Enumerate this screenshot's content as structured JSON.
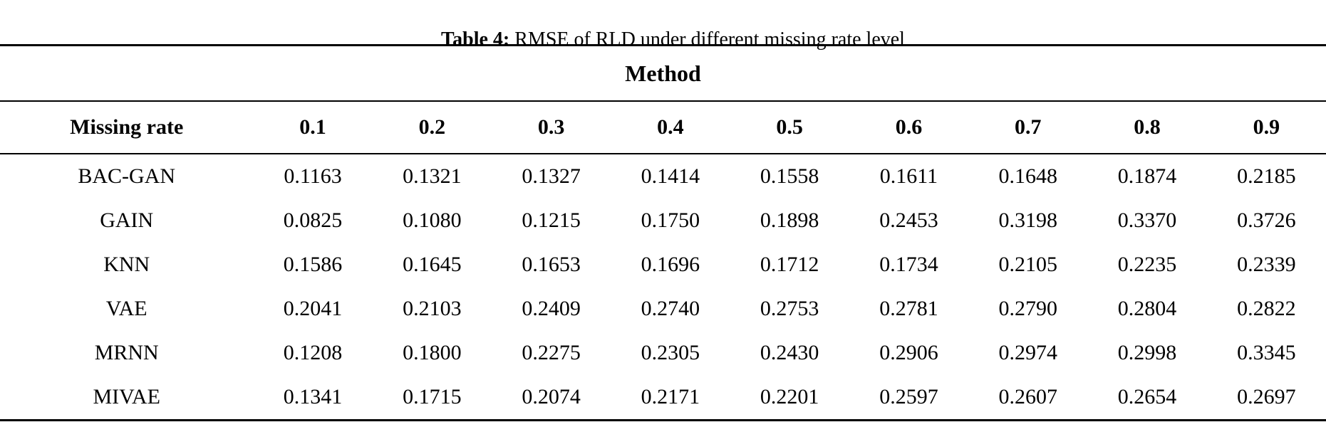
{
  "caption": {
    "label": "Table 4:",
    "text": " RMSE of RLD under different missing rate level"
  },
  "table": {
    "group_header": "Method",
    "row_header_label": "Missing rate",
    "missing_rates": [
      "0.1",
      "0.2",
      "0.3",
      "0.4",
      "0.5",
      "0.6",
      "0.7",
      "0.8",
      "0.9"
    ],
    "rows": [
      {
        "method": "BAC-GAN",
        "values": [
          "0.1163",
          "0.1321",
          "0.1327",
          "0.1414",
          "0.1558",
          "0.1611",
          "0.1648",
          "0.1874",
          "0.2185"
        ]
      },
      {
        "method": "GAIN",
        "values": [
          "0.0825",
          "0.1080",
          "0.1215",
          "0.1750",
          "0.1898",
          "0.2453",
          "0.3198",
          "0.3370",
          "0.3726"
        ]
      },
      {
        "method": "KNN",
        "values": [
          "0.1586",
          "0.1645",
          "0.1653",
          "0.1696",
          "0.1712",
          "0.1734",
          "0.2105",
          "0.2235",
          "0.2339"
        ]
      },
      {
        "method": "VAE",
        "values": [
          "0.2041",
          "0.2103",
          "0.2409",
          "0.2740",
          "0.2753",
          "0.2781",
          "0.2790",
          "0.2804",
          "0.2822"
        ]
      },
      {
        "method": "MRNN",
        "values": [
          "0.1208",
          "0.1800",
          "0.2275",
          "0.2305",
          "0.2430",
          "0.2906",
          "0.2974",
          "0.2998",
          "0.3345"
        ]
      },
      {
        "method": "MIVAE",
        "values": [
          "0.1341",
          "0.1715",
          "0.2074",
          "0.2171",
          "0.2201",
          "0.2597",
          "0.2607",
          "0.2654",
          "0.2697"
        ]
      }
    ]
  },
  "chart_data": {
    "type": "table",
    "title": "Table 4: RMSE of RLD under different missing rate level",
    "column_group": "Method",
    "x_label": "Missing rate",
    "categories": [
      0.1,
      0.2,
      0.3,
      0.4,
      0.5,
      0.6,
      0.7,
      0.8,
      0.9
    ],
    "series": [
      {
        "name": "BAC-GAN",
        "values": [
          0.1163,
          0.1321,
          0.1327,
          0.1414,
          0.1558,
          0.1611,
          0.1648,
          0.1874,
          0.2185
        ]
      },
      {
        "name": "GAIN",
        "values": [
          0.0825,
          0.108,
          0.1215,
          0.175,
          0.1898,
          0.2453,
          0.3198,
          0.337,
          0.3726
        ]
      },
      {
        "name": "KNN",
        "values": [
          0.1586,
          0.1645,
          0.1653,
          0.1696,
          0.1712,
          0.1734,
          0.2105,
          0.2235,
          0.2339
        ]
      },
      {
        "name": "VAE",
        "values": [
          0.2041,
          0.2103,
          0.2409,
          0.274,
          0.2753,
          0.2781,
          0.279,
          0.2804,
          0.2822
        ]
      },
      {
        "name": "MRNN",
        "values": [
          0.1208,
          0.18,
          0.2275,
          0.2305,
          0.243,
          0.2906,
          0.2974,
          0.2998,
          0.3345
        ]
      },
      {
        "name": "MIVAE",
        "values": [
          0.1341,
          0.1715,
          0.2074,
          0.2171,
          0.2201,
          0.2597,
          0.2607,
          0.2654,
          0.2697
        ]
      }
    ]
  }
}
